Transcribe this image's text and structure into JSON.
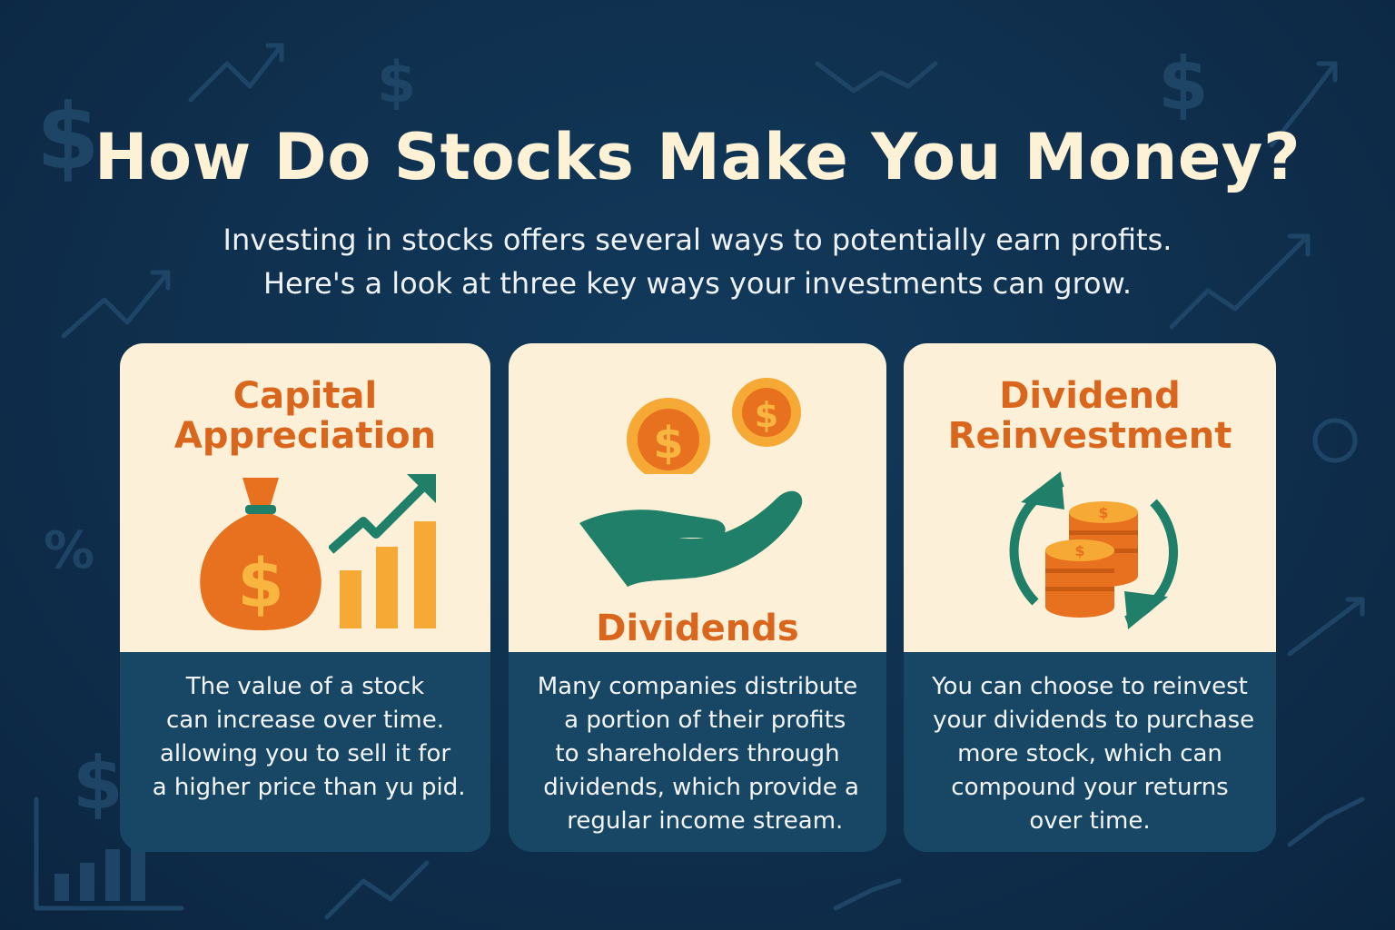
{
  "header": {
    "title": "How Do Stocks Make You Money?",
    "subtitle_lines": [
      "Investing in stocks offers several ways to potentially earn profits.",
      "Here's a look at three key ways your investments can grow."
    ]
  },
  "cards": [
    {
      "title_lines": [
        "Capital",
        "Appreciation"
      ],
      "icons": [
        "money-bag-icon",
        "rising-bar-chart-icon"
      ],
      "body_lines": [
        "The value of a stock",
        "can increase over time.",
        "allowing you to sell it for",
        " a higher price than yu pid."
      ]
    },
    {
      "title_lines": [
        "Dividends"
      ],
      "icons": [
        "coin-icon",
        "open-hand-icon"
      ],
      "body_lines": [
        "Many companies distribute",
        "  a portion of their profits",
        "to shareholders through",
        " dividends, which provide a",
        "  regular income stream."
      ]
    },
    {
      "title_lines": [
        "Dividend",
        "Reinvestment"
      ],
      "icons": [
        "circular-arrows-icon",
        "coin-stack-icon"
      ],
      "body_lines": [
        "You can choose to reinvest",
        " your dividends to purchase",
        "more stock, which can",
        "compound your returns",
        "over time."
      ]
    }
  ],
  "background_glyphs": [
    "$",
    "$",
    "$",
    "%",
    "$"
  ],
  "colors": {
    "background": "#0f2f4d",
    "title": "#fdf1d6",
    "card_light": "#fcf1d8",
    "card_dark": "#184766",
    "accent_orange": "#e8711f",
    "accent_gold": "#f6a935",
    "accent_green": "#1f7f68"
  }
}
